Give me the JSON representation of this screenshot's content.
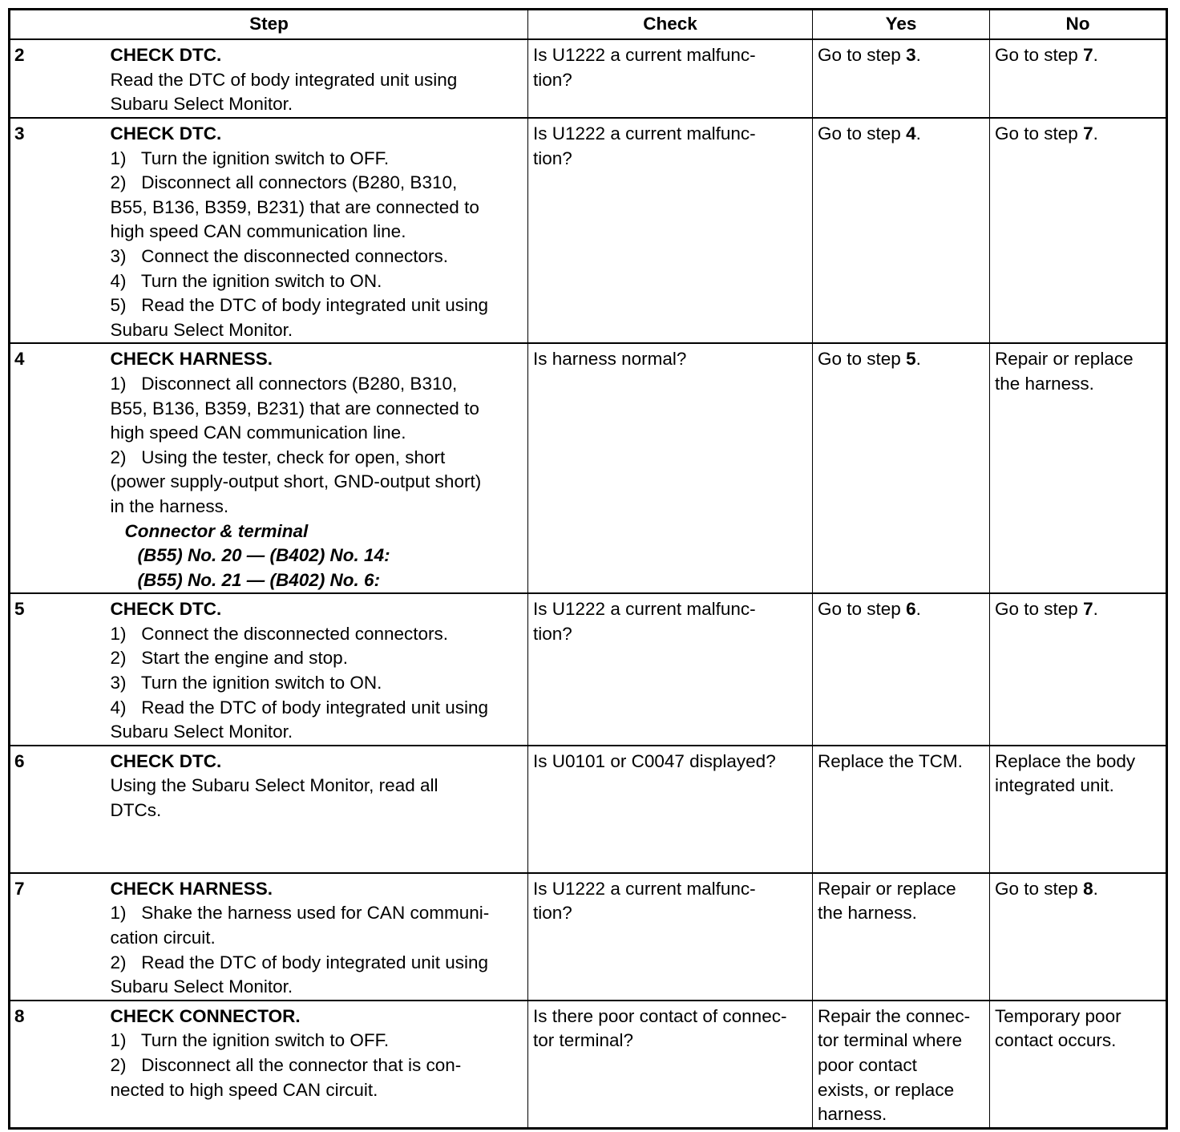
{
  "headers": {
    "step": "Step",
    "check": "Check",
    "yes": "Yes",
    "no": "No"
  },
  "rows": [
    {
      "num": "2",
      "title": "CHECK DTC.",
      "lines": [
        {
          "t": "Read the DTC of body integrated unit using"
        },
        {
          "t": "Subaru Select Monitor."
        }
      ],
      "check": [
        "Is U1222 a current malfunc-",
        "tion?"
      ],
      "yes": {
        "pre": "Go to step ",
        "step": "3",
        "post": "."
      },
      "no": {
        "pre": "Go to step ",
        "step": "7",
        "post": "."
      }
    },
    {
      "num": "3",
      "title": "CHECK DTC.",
      "lines": [
        {
          "t": "1)   Turn the ignition switch to OFF."
        },
        {
          "t": "2)   Disconnect all connectors (B280, B310,"
        },
        {
          "t": "B55, B136, B359, B231) that are connected to"
        },
        {
          "t": "high speed CAN communication line."
        },
        {
          "t": "3)   Connect the disconnected connectors."
        },
        {
          "t": "4)   Turn the ignition switch to ON."
        },
        {
          "t": "5)   Read the DTC of body integrated unit using"
        },
        {
          "t": "Subaru Select Monitor."
        }
      ],
      "check": [
        "Is U1222 a current malfunc-",
        "tion?"
      ],
      "yes": {
        "pre": "Go to step ",
        "step": "4",
        "post": "."
      },
      "no": {
        "pre": "Go to step ",
        "step": "7",
        "post": "."
      }
    },
    {
      "num": "4",
      "title": "CHECK HARNESS.",
      "lines": [
        {
          "t": "1)   Disconnect all connectors (B280, B310,"
        },
        {
          "t": "B55, B136, B359, B231) that are connected to"
        },
        {
          "t": "high speed CAN communication line."
        },
        {
          "t": "2)   Using the tester, check for open, short"
        },
        {
          "t": "(power supply-output short, GND-output short)"
        },
        {
          "t": "in the harness."
        },
        {
          "t": "Connector & terminal",
          "style": "ib",
          "indent": 1
        },
        {
          "t": "(B55) No. 20 — (B402) No. 14:",
          "style": "ib",
          "indent": 2
        },
        {
          "t": "(B55) No. 21 — (B402) No. 6:",
          "style": "ib",
          "indent": 2
        }
      ],
      "check": [
        "Is harness normal?"
      ],
      "yes": {
        "pre": "Go to step ",
        "step": "5",
        "post": "."
      },
      "no": {
        "lines": [
          "Repair or replace",
          "the harness."
        ]
      }
    },
    {
      "num": "5",
      "title": "CHECK DTC.",
      "lines": [
        {
          "t": "1)   Connect the disconnected connectors."
        },
        {
          "t": "2)   Start the engine and stop."
        },
        {
          "t": "3)   Turn the ignition switch to ON."
        },
        {
          "t": "4)   Read the DTC of body integrated unit using"
        },
        {
          "t": "Subaru Select Monitor."
        }
      ],
      "check": [
        "Is U1222 a current malfunc-",
        "tion?"
      ],
      "yes": {
        "pre": "Go to step ",
        "step": "6",
        "post": "."
      },
      "no": {
        "pre": "Go to step ",
        "step": "7",
        "post": "."
      }
    },
    {
      "num": "6",
      "title": "CHECK DTC.",
      "lines": [
        {
          "t": "Using the Subaru Select Monitor, read all"
        },
        {
          "t": "DTCs."
        }
      ],
      "check": [
        "Is U0101 or C0047 displayed?"
      ],
      "yes": {
        "lines": [
          "Replace the TCM."
        ]
      },
      "no": {
        "lines": [
          "Replace the body",
          "integrated unit."
        ]
      }
    },
    {
      "num": "7",
      "title": "CHECK HARNESS.",
      "lines": [
        {
          "t": "1)   Shake the harness used for CAN communi-"
        },
        {
          "t": "cation circuit."
        },
        {
          "t": "2)   Read the DTC of body integrated unit using"
        },
        {
          "t": "Subaru Select Monitor."
        }
      ],
      "check": [
        "Is U1222 a current malfunc-",
        "tion?"
      ],
      "yes": {
        "lines": [
          "Repair or replace",
          "the harness."
        ]
      },
      "no": {
        "pre": "Go to step ",
        "step": "8",
        "post": "."
      }
    },
    {
      "num": "8",
      "title": "CHECK CONNECTOR.",
      "lines": [
        {
          "t": "1)   Turn the ignition switch to OFF."
        },
        {
          "t": "2)   Disconnect all the connector that is con-"
        },
        {
          "t": "nected to high speed CAN circuit."
        }
      ],
      "check": [
        "Is there poor contact of connec-",
        "tor terminal?"
      ],
      "yes": {
        "lines": [
          "Repair the connec-",
          "tor terminal where",
          "poor contact",
          "exists, or replace",
          "harness."
        ]
      },
      "no": {
        "lines": [
          "Temporary poor",
          "contact occurs."
        ]
      }
    }
  ]
}
